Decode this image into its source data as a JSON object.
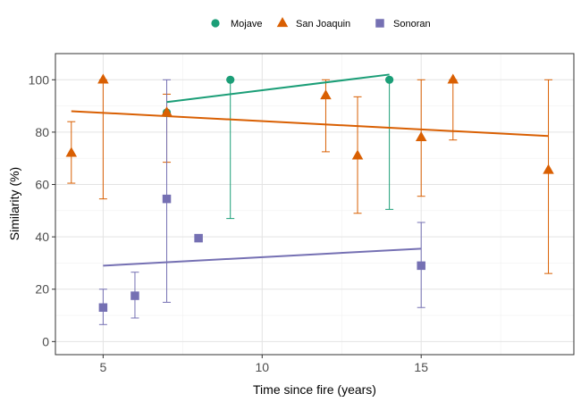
{
  "chart_data": {
    "type": "scatter",
    "xlabel": "Time since fire (years)",
    "ylabel": "Similarity (%)",
    "xlim": [
      3.5,
      19.8
    ],
    "ylim": [
      -5,
      110
    ],
    "xticks": [
      5,
      10,
      15
    ],
    "yticks": [
      0,
      20,
      40,
      60,
      80,
      100
    ],
    "grid": true,
    "legend_position": "top",
    "series": [
      {
        "name": "Mojave",
        "color": "#1b9e77",
        "marker": "circle",
        "points": [
          {
            "x": 7,
            "y": 87.5,
            "ymin": null,
            "ymax": null
          },
          {
            "x": 9,
            "y": 100,
            "ymin": 47,
            "ymax": 100
          },
          {
            "x": 14,
            "y": 100,
            "ymin": 50.5,
            "ymax": 100
          }
        ],
        "trend": {
          "x": [
            7,
            14
          ],
          "y": [
            91.5,
            102
          ]
        }
      },
      {
        "name": "San Joaquin",
        "color": "#d95f02",
        "marker": "triangle",
        "points": [
          {
            "x": 4,
            "y": 72,
            "ymin": 60.5,
            "ymax": 84
          },
          {
            "x": 5,
            "y": 100,
            "ymin": 54.5,
            "ymax": 100
          },
          {
            "x": 7,
            "y": 87.5,
            "ymin": 68.5,
            "ymax": 94.5
          },
          {
            "x": 12,
            "y": 94,
            "ymin": 72.5,
            "ymax": 100
          },
          {
            "x": 13,
            "y": 71,
            "ymin": 49,
            "ymax": 93.5
          },
          {
            "x": 15,
            "y": 78,
            "ymin": 55.5,
            "ymax": 100
          },
          {
            "x": 16,
            "y": 100,
            "ymin": 77,
            "ymax": 100
          },
          {
            "x": 19,
            "y": 65.5,
            "ymin": 26,
            "ymax": 100
          }
        ],
        "trend": {
          "x": [
            4,
            19
          ],
          "y": [
            88,
            78.5
          ]
        }
      },
      {
        "name": "Sonoran",
        "color": "#7570b3",
        "marker": "square",
        "points": [
          {
            "x": 5,
            "y": 13,
            "ymin": 6.5,
            "ymax": 20
          },
          {
            "x": 6,
            "y": 17.5,
            "ymin": 9,
            "ymax": 26.5
          },
          {
            "x": 7,
            "y": 54.5,
            "ymin": 15,
            "ymax": 100
          },
          {
            "x": 8,
            "y": 39.5,
            "ymin": null,
            "ymax": null
          },
          {
            "x": 15,
            "y": 29,
            "ymin": 13,
            "ymax": 45.5
          }
        ],
        "trend": {
          "x": [
            5,
            15
          ],
          "y": [
            29,
            35.5
          ]
        }
      }
    ]
  }
}
